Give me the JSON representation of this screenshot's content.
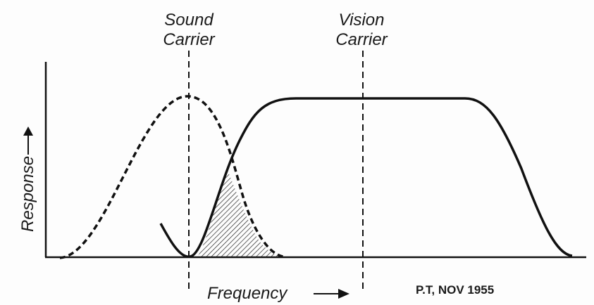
{
  "labels": {
    "sound_carrier": [
      "Sound",
      "Carrier"
    ],
    "vision_carrier": [
      "Vision",
      "Carrier"
    ],
    "y_axis": "Response",
    "x_axis": "Frequency",
    "credit": "P.T, NOV 1955"
  }
}
